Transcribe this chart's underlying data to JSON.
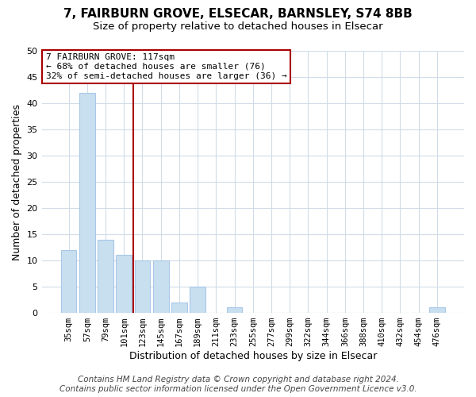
{
  "title": "7, FAIRBURN GROVE, ELSECAR, BARNSLEY, S74 8BB",
  "subtitle": "Size of property relative to detached houses in Elsecar",
  "xlabel": "Distribution of detached houses by size in Elsecar",
  "ylabel": "Number of detached properties",
  "bar_labels": [
    "35sqm",
    "57sqm",
    "79sqm",
    "101sqm",
    "123sqm",
    "145sqm",
    "167sqm",
    "189sqm",
    "211sqm",
    "233sqm",
    "255sqm",
    "277sqm",
    "299sqm",
    "322sqm",
    "344sqm",
    "366sqm",
    "388sqm",
    "410sqm",
    "432sqm",
    "454sqm",
    "476sqm"
  ],
  "bar_values": [
    12,
    42,
    14,
    11,
    10,
    10,
    2,
    5,
    0,
    1,
    0,
    0,
    0,
    0,
    0,
    0,
    0,
    0,
    0,
    0,
    1
  ],
  "bar_color": "#c8dff0",
  "bar_edge_color": "#a8c8e8",
  "ylim": [
    0,
    50
  ],
  "yticks": [
    0,
    5,
    10,
    15,
    20,
    25,
    30,
    35,
    40,
    45,
    50
  ],
  "vline_color": "#aa0000",
  "annotation_text": "7 FAIRBURN GROVE: 117sqm\n← 68% of detached houses are smaller (76)\n32% of semi-detached houses are larger (36) →",
  "annotation_box_color": "#ffffff",
  "annotation_border_color": "#aa0000",
  "footer_line1": "Contains HM Land Registry data © Crown copyright and database right 2024.",
  "footer_line2": "Contains public sector information licensed under the Open Government Licence v3.0.",
  "background_color": "#ffffff",
  "plot_background_color": "#ffffff",
  "grid_color": "#d0dce8",
  "title_fontsize": 11,
  "subtitle_fontsize": 9.5,
  "footer_fontsize": 7.5
}
